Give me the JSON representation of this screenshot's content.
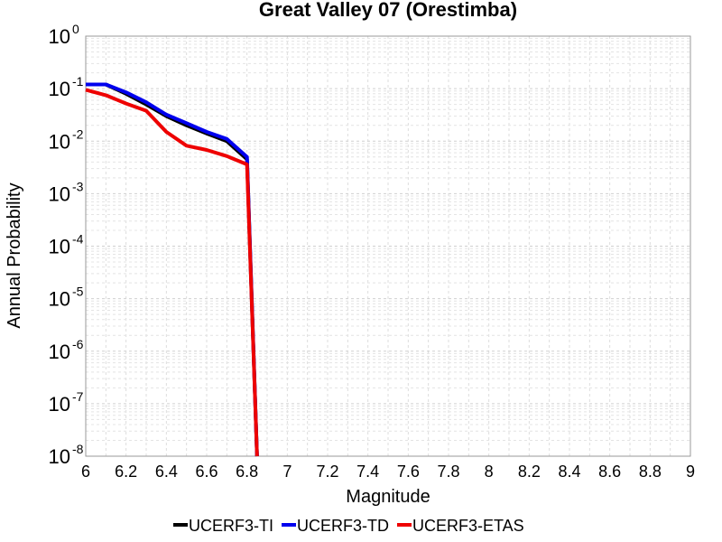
{
  "chart_data": {
    "type": "line",
    "title": "Great Valley 07 (Orestimba)",
    "xlabel": "Magnitude",
    "ylabel": "Annual Probability",
    "xlim": [
      6,
      9
    ],
    "ylim": [
      1e-08,
      1
    ],
    "yscale": "log",
    "x_ticks": [
      "6",
      "6.2",
      "6.4",
      "6.6",
      "6.8",
      "7",
      "7.2",
      "7.4",
      "7.6",
      "7.8",
      "8",
      "8.2",
      "8.4",
      "8.6",
      "8.8",
      "9"
    ],
    "y_ticks": [
      {
        "base": "10",
        "exp": "0"
      },
      {
        "base": "10",
        "exp": "-1"
      },
      {
        "base": "10",
        "exp": "-2"
      },
      {
        "base": "10",
        "exp": "-3"
      },
      {
        "base": "10",
        "exp": "-4"
      },
      {
        "base": "10",
        "exp": "-5"
      },
      {
        "base": "10",
        "exp": "-6"
      },
      {
        "base": "10",
        "exp": "-7"
      },
      {
        "base": "10",
        "exp": "-8"
      }
    ],
    "grid": true,
    "legend_position": "bottom",
    "series": [
      {
        "name": "UCERF3-TI",
        "color": "#000000",
        "x": [
          6.0,
          6.1,
          6.2,
          6.3,
          6.4,
          6.5,
          6.6,
          6.7,
          6.8,
          6.85
        ],
        "y": [
          0.12,
          0.12,
          0.08,
          0.05,
          0.03,
          0.02,
          0.014,
          0.01,
          0.0045,
          1e-08
        ]
      },
      {
        "name": "UCERF3-TD",
        "color": "#0000ee",
        "x": [
          6.0,
          6.1,
          6.2,
          6.3,
          6.4,
          6.5,
          6.6,
          6.7,
          6.8,
          6.85
        ],
        "y": [
          0.12,
          0.12,
          0.085,
          0.055,
          0.032,
          0.022,
          0.015,
          0.011,
          0.005,
          1e-08
        ]
      },
      {
        "name": "UCERF3-ETAS",
        "color": "#ee0000",
        "x": [
          6.0,
          6.1,
          6.2,
          6.3,
          6.4,
          6.5,
          6.6,
          6.7,
          6.8,
          6.85
        ],
        "y": [
          0.095,
          0.075,
          0.052,
          0.038,
          0.015,
          0.0082,
          0.0068,
          0.0052,
          0.0036,
          1e-08
        ]
      }
    ]
  }
}
